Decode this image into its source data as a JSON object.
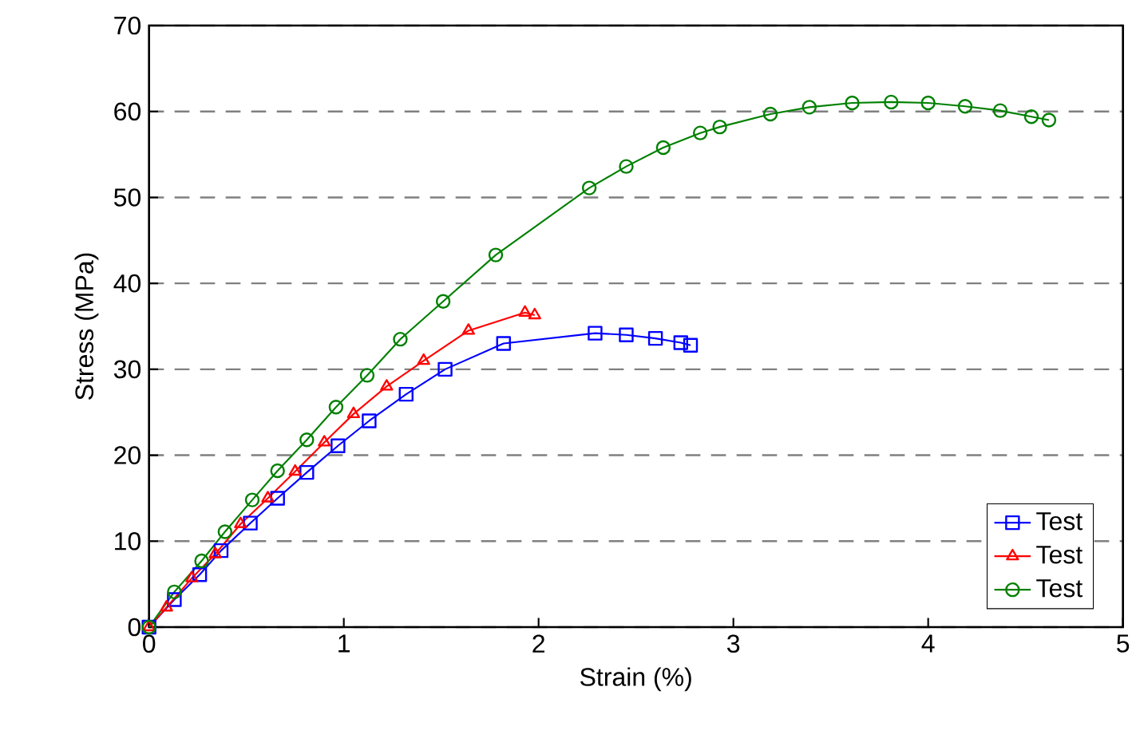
{
  "chart_data": {
    "type": "line",
    "xlabel": "Strain (%)",
    "ylabel": "Stress (MPa)",
    "xlim": [
      0,
      5
    ],
    "ylim": [
      0,
      70
    ],
    "xticks": [
      0,
      1,
      2,
      3,
      4,
      5
    ],
    "yticks": [
      0,
      10,
      20,
      30,
      40,
      50,
      60,
      70
    ],
    "grid": "y",
    "legend": "bottom right",
    "line_style": "solid",
    "series": [
      {
        "name": "Test",
        "color": "#0000ff",
        "marker": "square",
        "x": [
          0,
          0.13,
          0.26,
          0.37,
          0.52,
          0.66,
          0.81,
          0.97,
          1.13,
          1.32,
          1.52,
          1.82,
          2.29,
          2.45,
          2.6,
          2.73,
          2.78
        ],
        "values": [
          0,
          3.2,
          6.1,
          8.9,
          12.1,
          15.0,
          18.0,
          21.1,
          24.0,
          27.1,
          30.0,
          33.0,
          34.2,
          34.0,
          33.6,
          33.1,
          32.8
        ]
      },
      {
        "name": "Test",
        "color": "#ff0000",
        "marker": "triangle",
        "x": [
          0,
          0.09,
          0.22,
          0.34,
          0.47,
          0.61,
          0.75,
          0.9,
          1.05,
          1.22,
          1.41,
          1.64,
          1.93,
          1.98
        ],
        "values": [
          0,
          2.3,
          5.7,
          8.5,
          12.0,
          15.0,
          18.1,
          21.5,
          24.8,
          28.0,
          31.0,
          34.5,
          36.6,
          36.3
        ]
      },
      {
        "name": "Test",
        "color": "#008000",
        "marker": "circle",
        "x": [
          0,
          0.13,
          0.27,
          0.39,
          0.53,
          0.66,
          0.81,
          0.96,
          1.12,
          1.29,
          1.51,
          1.78,
          2.26,
          2.45,
          2.64,
          2.83,
          2.93,
          3.19,
          3.39,
          3.61,
          3.81,
          4.0,
          4.19,
          4.37,
          4.53,
          4.62
        ],
        "values": [
          0,
          4.1,
          7.7,
          11.1,
          14.8,
          18.2,
          21.8,
          25.6,
          29.3,
          33.5,
          37.9,
          43.3,
          51.1,
          53.6,
          55.8,
          57.5,
          58.2,
          59.7,
          60.5,
          61.0,
          61.1,
          61.0,
          60.6,
          60.1,
          59.4,
          59.0
        ]
      }
    ]
  }
}
